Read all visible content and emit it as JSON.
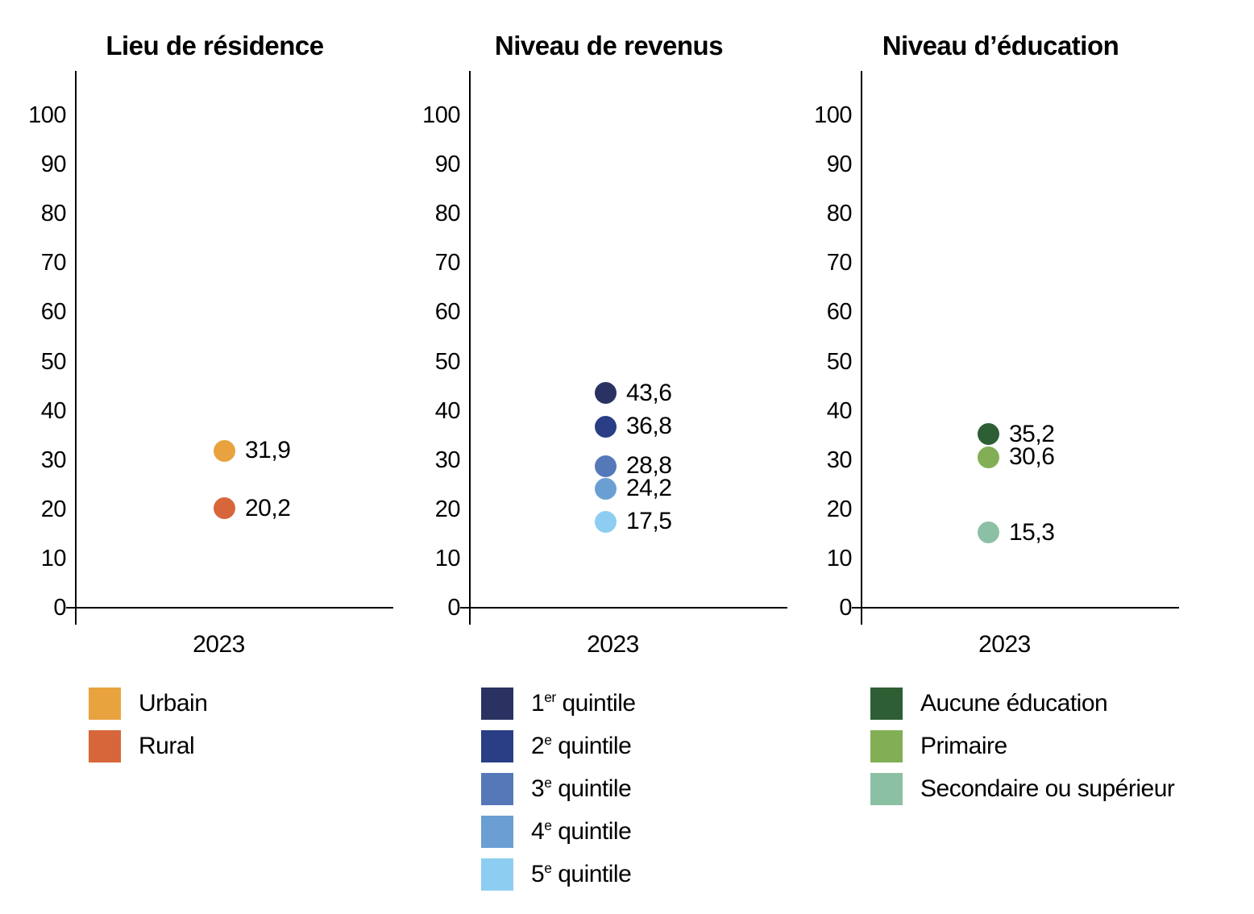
{
  "y_tick_labels": [
    "100",
    "90",
    "80",
    "70",
    "60",
    "50",
    "40",
    "30",
    "20",
    "10",
    "0"
  ],
  "chart_data": [
    {
      "type": "scatter",
      "title": "Lieu de résidence",
      "categories": [
        "2023"
      ],
      "ylim": [
        0,
        100
      ],
      "y_tick_step": 10,
      "legend_position": "bottom",
      "series": [
        {
          "name": "Urbain",
          "values": [
            31.9
          ],
          "display_label": "31,9",
          "color": "#E8A33E",
          "legend": {
            "base": "Urbain",
            "sup": "",
            "rest": ""
          }
        },
        {
          "name": "Rural",
          "values": [
            20.2
          ],
          "display_label": "20,2",
          "color": "#D7663A",
          "legend": {
            "base": "Rural",
            "sup": "",
            "rest": ""
          }
        }
      ]
    },
    {
      "type": "scatter",
      "title": "Niveau de revenus",
      "categories": [
        "2023"
      ],
      "ylim": [
        0,
        100
      ],
      "y_tick_step": 10,
      "legend_position": "bottom",
      "series": [
        {
          "name": "1er quintile",
          "values": [
            43.6
          ],
          "display_label": "43,6",
          "color": "#2A3261",
          "legend": {
            "base": "1",
            "sup": "er",
            "rest": " quintile"
          }
        },
        {
          "name": "2e quintile",
          "values": [
            36.8
          ],
          "display_label": "36,8",
          "color": "#293E85",
          "legend": {
            "base": "2",
            "sup": "e",
            "rest": " quintile"
          }
        },
        {
          "name": "3e quintile",
          "values": [
            28.8
          ],
          "display_label": "28,8",
          "color": "#5578B8",
          "legend": {
            "base": "3",
            "sup": "e",
            "rest": " quintile"
          }
        },
        {
          "name": "4e quintile",
          "values": [
            24.2
          ],
          "display_label": "24,2",
          "color": "#6B9FD3",
          "legend": {
            "base": "4",
            "sup": "e",
            "rest": " quintile"
          }
        },
        {
          "name": "5e quintile",
          "values": [
            17.5
          ],
          "display_label": "17,5",
          "color": "#8ECDF2",
          "legend": {
            "base": "5",
            "sup": "e",
            "rest": " quintile"
          }
        }
      ]
    },
    {
      "type": "scatter",
      "title": "Niveau d’éducation",
      "categories": [
        "2023"
      ],
      "ylim": [
        0,
        100
      ],
      "y_tick_step": 10,
      "legend_position": "bottom",
      "series": [
        {
          "name": "Aucune éducation",
          "values": [
            35.2
          ],
          "display_label": "35,2",
          "color": "#2D5E34",
          "legend": {
            "base": "Aucune éducation",
            "sup": "",
            "rest": ""
          }
        },
        {
          "name": "Primaire",
          "values": [
            30.6
          ],
          "display_label": "30,6",
          "color": "#82AF56",
          "legend": {
            "base": "Primaire",
            "sup": "",
            "rest": ""
          }
        },
        {
          "name": "Secondaire ou supérieur",
          "values": [
            15.3
          ],
          "display_label": "15,3",
          "color": "#8BC0A5",
          "legend": {
            "base": "Secondaire ou supérieur",
            "sup": "",
            "rest": ""
          }
        }
      ]
    }
  ]
}
